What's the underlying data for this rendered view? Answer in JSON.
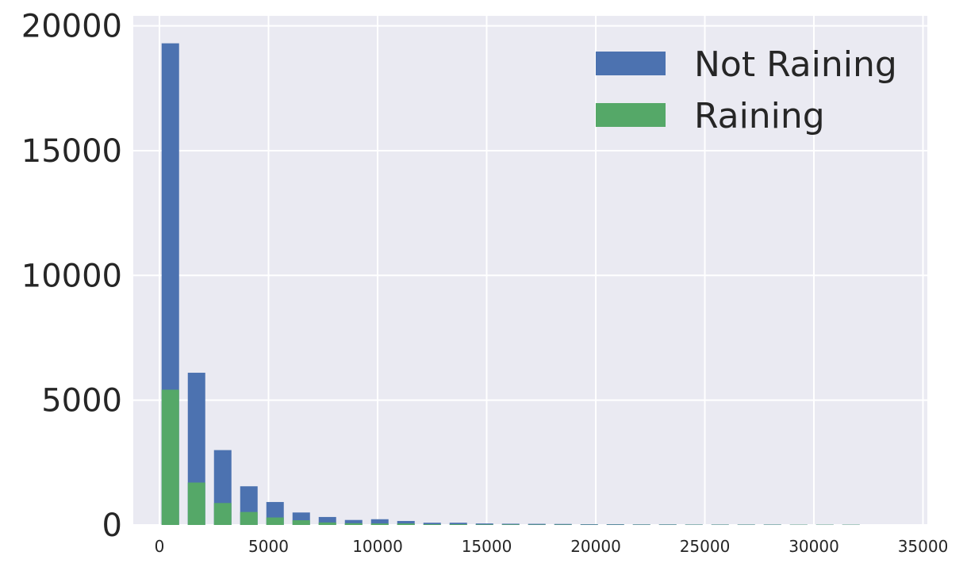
{
  "chart_data": {
    "type": "bar",
    "stacking": "overlay",
    "title": "",
    "xlabel": "",
    "ylabel": "",
    "xlim": [
      -1200,
      35200
    ],
    "ylim": [
      0,
      20400
    ],
    "grid": true,
    "legend_position": "top-right",
    "bar_width": 800,
    "x": [
      500,
      1700,
      2900,
      4100,
      5300,
      6500,
      7700,
      8900,
      10100,
      11300,
      12500,
      13700,
      14900,
      16100,
      17300,
      18500,
      19700,
      20900,
      22100,
      23300,
      24500,
      25700,
      26900,
      28100,
      29300,
      30500,
      31700
    ],
    "series": [
      {
        "name": "Not Raining",
        "color": "#4c72b0",
        "values": [
          19300,
          6100,
          3000,
          1550,
          920,
          500,
          320,
          200,
          230,
          160,
          90,
          90,
          60,
          50,
          45,
          40,
          30,
          30,
          25,
          25,
          20,
          20,
          20,
          20,
          15,
          15,
          15
        ]
      },
      {
        "name": "Raining",
        "color": "#55a868",
        "values": [
          5420,
          1700,
          880,
          520,
          300,
          190,
          100,
          70,
          60,
          60,
          30,
          30,
          20,
          20,
          15,
          15,
          10,
          10,
          10,
          10,
          10,
          10,
          10,
          10,
          10,
          10,
          10
        ]
      }
    ],
    "yticks": [
      0,
      5000,
      10000,
      15000,
      20000
    ],
    "ytick_labels": [
      "0",
      "5000",
      "10000",
      "15000",
      "20000"
    ],
    "xticks": [
      0,
      5000,
      10000,
      15000,
      20000,
      25000,
      30000,
      35000
    ],
    "xtick_labels": [
      "0",
      "5000",
      "10000",
      "15000",
      "20000",
      "25000",
      "30000",
      "35000"
    ]
  }
}
